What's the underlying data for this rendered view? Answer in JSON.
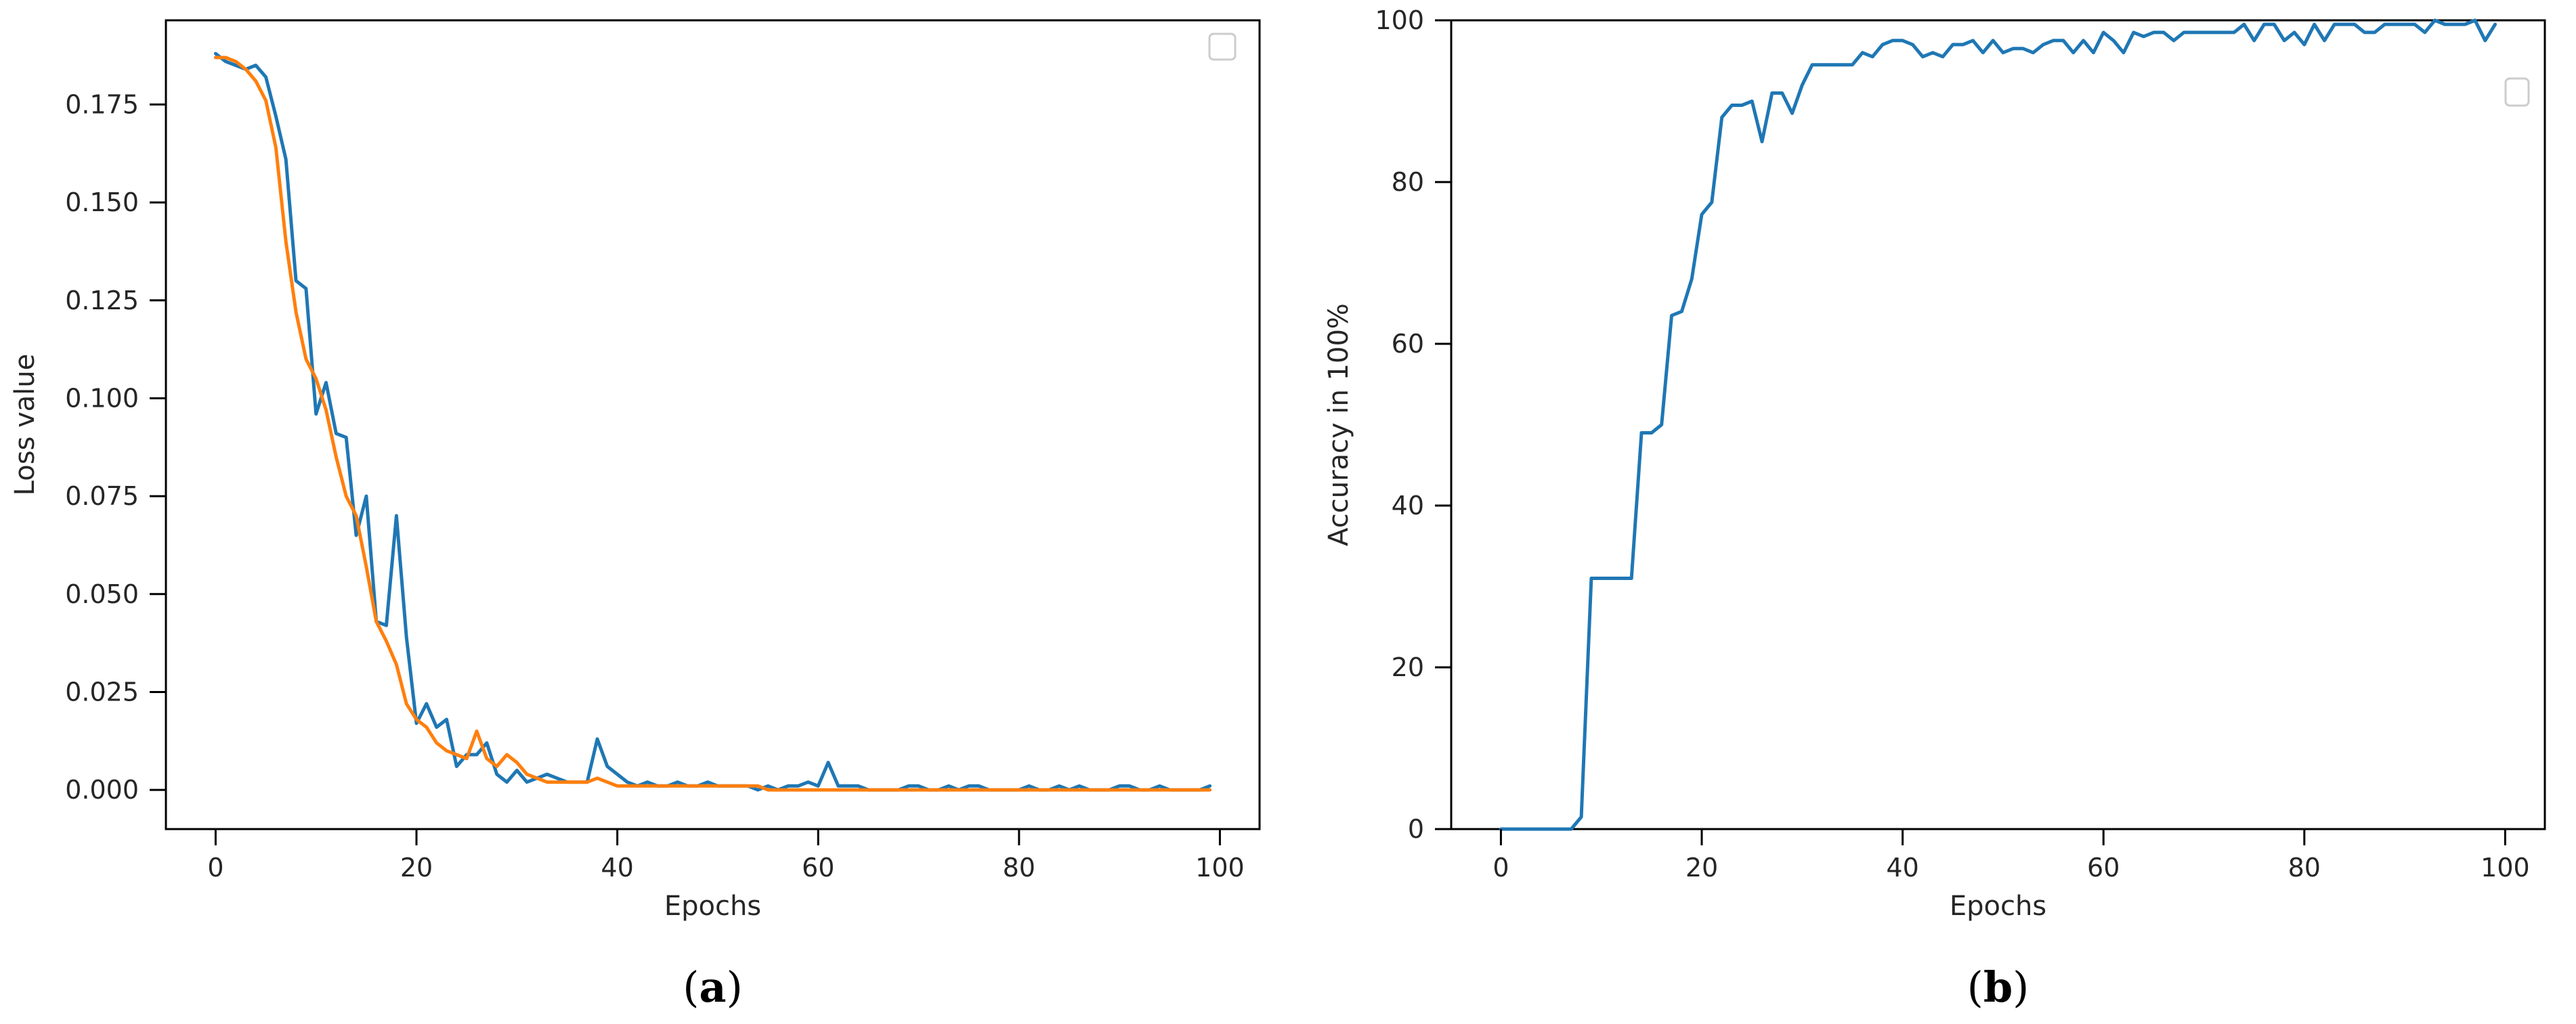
{
  "chart_data": [
    {
      "type": "line",
      "panel_label": "a",
      "xlabel": "Epochs",
      "ylabel": "Loss value",
      "xlim": [
        -4.95,
        103.95
      ],
      "ylim": [
        -0.01,
        0.1965
      ],
      "xticks": [
        0,
        20,
        40,
        60,
        80,
        100
      ],
      "yticks": [
        0.0,
        0.025,
        0.05,
        0.075,
        0.1,
        0.125,
        0.15,
        0.175
      ],
      "ytick_labels": [
        "0.000",
        "0.025",
        "0.050",
        "0.075",
        "0.100",
        "0.125",
        "0.150",
        "0.175"
      ],
      "grid": false,
      "legend": "top-right (empty)",
      "series": [
        {
          "color": "#1f77b4",
          "x": [
            0,
            1,
            2,
            3,
            4,
            5,
            6,
            7,
            8,
            9,
            10,
            11,
            12,
            13,
            14,
            15,
            16,
            17,
            18,
            19,
            20,
            21,
            22,
            23,
            24,
            25,
            26,
            27,
            28,
            29,
            30,
            31,
            32,
            33,
            34,
            35,
            36,
            37,
            38,
            39,
            40,
            41,
            42,
            43,
            44,
            45,
            46,
            47,
            48,
            49,
            50,
            51,
            52,
            53,
            54,
            55,
            56,
            57,
            58,
            59,
            60,
            61,
            62,
            63,
            64,
            65,
            66,
            67,
            68,
            69,
            70,
            71,
            72,
            73,
            74,
            75,
            76,
            77,
            78,
            79,
            80,
            81,
            82,
            83,
            84,
            85,
            86,
            87,
            88,
            89,
            90,
            91,
            92,
            93,
            94,
            95,
            96,
            97,
            98,
            99
          ],
          "y": [
            0.188,
            0.186,
            0.185,
            0.184,
            0.185,
            0.182,
            0.172,
            0.161,
            0.13,
            0.128,
            0.096,
            0.104,
            0.091,
            0.09,
            0.065,
            0.075,
            0.043,
            0.042,
            0.07,
            0.039,
            0.017,
            0.022,
            0.016,
            0.018,
            0.006,
            0.009,
            0.009,
            0.012,
            0.004,
            0.002,
            0.005,
            0.002,
            0.003,
            0.004,
            0.003,
            0.002,
            0.002,
            0.002,
            0.013,
            0.006,
            0.004,
            0.002,
            0.001,
            0.002,
            0.001,
            0.001,
            0.002,
            0.001,
            0.001,
            0.002,
            0.001,
            0.001,
            0.001,
            0.001,
            0.0,
            0.001,
            0.0,
            0.001,
            0.001,
            0.002,
            0.001,
            0.007,
            0.001,
            0.001,
            0.001,
            0.0,
            0.0,
            0.0,
            0.0,
            0.001,
            0.001,
            0.0,
            0.0,
            0.001,
            0.0,
            0.001,
            0.001,
            0.0,
            0.0,
            0.0,
            0.0,
            0.001,
            0.0,
            0.0,
            0.001,
            0.0,
            0.001,
            0.0,
            0.0,
            0.0,
            0.001,
            0.001,
            0.0,
            0.0,
            0.001,
            0.0,
            0.0,
            0.0,
            0.0,
            0.001
          ]
        },
        {
          "color": "#ff7f0e",
          "x": [
            0,
            1,
            2,
            3,
            4,
            5,
            6,
            7,
            8,
            9,
            10,
            11,
            12,
            13,
            14,
            15,
            16,
            17,
            18,
            19,
            20,
            21,
            22,
            23,
            24,
            25,
            26,
            27,
            28,
            29,
            30,
            31,
            32,
            33,
            34,
            35,
            36,
            37,
            38,
            39,
            40,
            41,
            42,
            43,
            44,
            45,
            46,
            47,
            48,
            49,
            50,
            51,
            52,
            53,
            54,
            55,
            56,
            57,
            58,
            59,
            60,
            61,
            62,
            63,
            64,
            65,
            66,
            67,
            68,
            69,
            70,
            71,
            72,
            73,
            74,
            75,
            76,
            77,
            78,
            79,
            80,
            81,
            82,
            83,
            84,
            85,
            86,
            87,
            88,
            89,
            90,
            91,
            92,
            93,
            94,
            95,
            96,
            97,
            98,
            99
          ],
          "y": [
            0.187,
            0.187,
            0.186,
            0.184,
            0.181,
            0.176,
            0.164,
            0.14,
            0.122,
            0.11,
            0.105,
            0.097,
            0.085,
            0.075,
            0.07,
            0.057,
            0.043,
            0.038,
            0.032,
            0.022,
            0.018,
            0.016,
            0.012,
            0.01,
            0.009,
            0.008,
            0.015,
            0.008,
            0.006,
            0.009,
            0.007,
            0.004,
            0.003,
            0.002,
            0.002,
            0.002,
            0.002,
            0.002,
            0.003,
            0.002,
            0.001,
            0.001,
            0.001,
            0.001,
            0.001,
            0.001,
            0.001,
            0.001,
            0.001,
            0.001,
            0.001,
            0.001,
            0.001,
            0.001,
            0.001,
            0.0,
            0.0,
            0.0,
            0.0,
            0.0,
            0.0,
            0.0,
            0.0,
            0.0,
            0.0,
            0.0,
            0.0,
            0.0,
            0.0,
            0.0,
            0.0,
            0.0,
            0.0,
            0.0,
            0.0,
            0.0,
            0.0,
            0.0,
            0.0,
            0.0,
            0.0,
            0.0,
            0.0,
            0.0,
            0.0,
            0.0,
            0.0,
            0.0,
            0.0,
            0.0,
            0.0,
            0.0,
            0.0,
            0.0,
            0.0,
            0.0,
            0.0,
            0.0,
            0.0,
            0.0
          ]
        }
      ]
    },
    {
      "type": "line",
      "panel_label": "b",
      "xlabel": "Epochs",
      "ylabel": "Accuracy in 100%",
      "xlim": [
        -4.95,
        103.95
      ],
      "ylim": [
        0,
        100
      ],
      "xticks": [
        0,
        20,
        40,
        60,
        80,
        100
      ],
      "yticks": [
        0,
        20,
        40,
        60,
        80,
        100
      ],
      "ytick_labels": [
        "0",
        "20",
        "40",
        "60",
        "80",
        "100"
      ],
      "grid": false,
      "legend": "top-right (empty)",
      "series": [
        {
          "color": "#1f77b4",
          "x": [
            0,
            1,
            2,
            3,
            4,
            5,
            6,
            7,
            8,
            9,
            10,
            11,
            12,
            13,
            14,
            15,
            16,
            17,
            18,
            19,
            20,
            21,
            22,
            23,
            24,
            25,
            26,
            27,
            28,
            29,
            30,
            31,
            32,
            33,
            34,
            35,
            36,
            37,
            38,
            39,
            40,
            41,
            42,
            43,
            44,
            45,
            46,
            47,
            48,
            49,
            50,
            51,
            52,
            53,
            54,
            55,
            56,
            57,
            58,
            59,
            60,
            61,
            62,
            63,
            64,
            65,
            66,
            67,
            68,
            69,
            70,
            71,
            72,
            73,
            74,
            75,
            76,
            77,
            78,
            79,
            80,
            81,
            82,
            83,
            84,
            85,
            86,
            87,
            88,
            89,
            90,
            91,
            92,
            93,
            94,
            95,
            96,
            97,
            98,
            99
          ],
          "y": [
            0,
            0,
            0,
            0,
            0,
            0,
            0,
            0,
            1.5,
            31,
            31,
            31,
            31,
            31,
            49,
            49,
            50,
            63.5,
            64,
            68,
            76,
            77.5,
            88,
            89.5,
            89.5,
            90,
            85,
            91,
            91,
            88.5,
            92,
            94.5,
            94.5,
            94.5,
            94.5,
            94.5,
            96,
            95.5,
            97,
            97.5,
            97.5,
            97,
            95.5,
            96,
            95.5,
            97,
            97,
            97.5,
            96,
            97.5,
            96,
            96.5,
            96.5,
            96,
            97,
            97.5,
            97.5,
            96,
            97.5,
            96,
            98.5,
            97.5,
            96,
            98.5,
            98,
            98.5,
            98.5,
            97.5,
            98.5,
            98.5,
            98.5,
            98.5,
            98.5,
            98.5,
            99.5,
            97.5,
            99.5,
            99.5,
            97.5,
            98.5,
            97,
            99.5,
            97.5,
            99.5,
            99.5,
            99.5,
            98.5,
            98.5,
            99.5,
            99.5,
            99.5,
            99.5,
            98.5,
            100,
            99.5,
            99.5,
            99.5,
            100,
            97.5,
            99.5
          ]
        }
      ]
    }
  ]
}
